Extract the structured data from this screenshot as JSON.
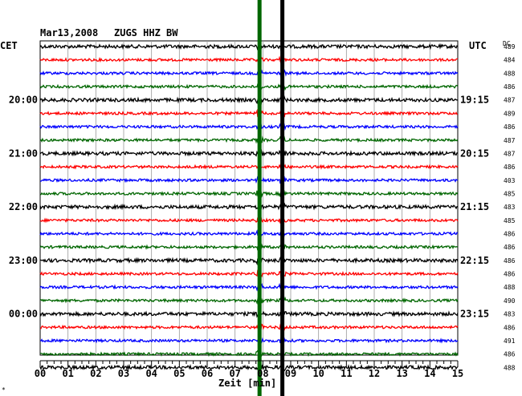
{
  "header": {
    "date": "Mar13,2008",
    "station": "ZUGS HHZ BW",
    "left_tz": "CET",
    "right_tz": "UTC",
    "dc_label": "DC",
    "corner_mark": "*"
  },
  "chart_data": {
    "type": "line",
    "title": "Mar13,2008   ZUGS HHZ BW",
    "xlabel": "Zeit [min]",
    "xlim": [
      0,
      15
    ],
    "x_ticks": [
      "00",
      "01",
      "02",
      "03",
      "04",
      "05",
      "06",
      "07",
      "08",
      "09",
      "10",
      "11",
      "12",
      "13",
      "14",
      "15"
    ],
    "grid": true,
    "trace_colors": [
      "#000000",
      "#ff0000",
      "#0000ff",
      "#006600"
    ],
    "left_time_labels": [
      {
        "row": 4,
        "label": "20:00"
      },
      {
        "row": 8,
        "label": "21:00"
      },
      {
        "row": 12,
        "label": "22:00"
      },
      {
        "row": 16,
        "label": "23:00"
      },
      {
        "row": 20,
        "label": "00:00"
      }
    ],
    "right_time_labels": [
      {
        "row": 0,
        "label": ""
      },
      {
        "row": 4,
        "label": "19:15"
      },
      {
        "row": 8,
        "label": "20:15"
      },
      {
        "row": 12,
        "label": "21:15"
      },
      {
        "row": 16,
        "label": "22:15"
      },
      {
        "row": 20,
        "label": "23:15"
      }
    ],
    "dc_values": [
      "489",
      "484",
      "488",
      "486",
      "487",
      "489",
      "486",
      "487",
      "487",
      "486",
      "403",
      "485",
      "483",
      "485",
      "486",
      "486",
      "486",
      "486",
      "488",
      "490",
      "483",
      "486",
      "491",
      "486",
      "488"
    ],
    "event_markers": [
      {
        "name": "green",
        "minute": 7.88,
        "color": "#006600"
      },
      {
        "name": "black",
        "minute": 8.7,
        "color": "#000000"
      }
    ]
  }
}
